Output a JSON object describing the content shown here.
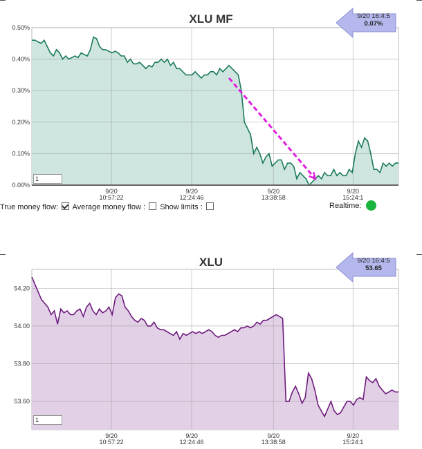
{
  "chart_data": [
    {
      "type": "area",
      "title": "XLU MF",
      "yticks": [
        "0.50%",
        "0.40%",
        "0.30%",
        "0.20%",
        "0.10%",
        "0.00%"
      ],
      "ylim": [
        0,
        0.5
      ],
      "xticks": [
        {
          "date": "9/20",
          "time": "10:57:22"
        },
        {
          "date": "9/20",
          "time": "12:24:46"
        },
        {
          "date": "9/20",
          "time": "13:38:58"
        },
        {
          "date": "9/20",
          "time": "15:24:1"
        }
      ],
      "series": [
        {
          "values": [
            0.46,
            0.46,
            0.455,
            0.45,
            0.46,
            0.44,
            0.42,
            0.41,
            0.43,
            0.42,
            0.4,
            0.41,
            0.4,
            0.405,
            0.41,
            0.405,
            0.42,
            0.415,
            0.41,
            0.43,
            0.47,
            0.465,
            0.44,
            0.43,
            0.43,
            0.425,
            0.42,
            0.425,
            0.42,
            0.41,
            0.41,
            0.39,
            0.4,
            0.385,
            0.385,
            0.39,
            0.38,
            0.37,
            0.38,
            0.375,
            0.39,
            0.39,
            0.4,
            0.39,
            0.4,
            0.38,
            0.39,
            0.37,
            0.37,
            0.36,
            0.35,
            0.35,
            0.35,
            0.36,
            0.35,
            0.34,
            0.35,
            0.35,
            0.36,
            0.36,
            0.35,
            0.37,
            0.36,
            0.37,
            0.38,
            0.37,
            0.36,
            0.35,
            0.3,
            0.2,
            0.18,
            0.16,
            0.1,
            0.12,
            0.1,
            0.07,
            0.09,
            0.1,
            0.06,
            0.07,
            0.08,
            0.08,
            0.05,
            0.07,
            0.07,
            0.06,
            0.02,
            0.04,
            0.03,
            0.02,
            0.0,
            0.01,
            0.02,
            0.03,
            0.02,
            0.04,
            0.03,
            0.03,
            0.05,
            0.03,
            0.04,
            0.03,
            0.03,
            0.05,
            0.04,
            0.1,
            0.14,
            0.12,
            0.15,
            0.14,
            0.1,
            0.05,
            0.05,
            0.04,
            0.07,
            0.06,
            0.07,
            0.06,
            0.07,
            0.07
          ]
        }
      ],
      "annotation": {
        "type": "trend-arrow",
        "color": "#e020e0"
      },
      "tooltip": {
        "time": "9/20 16:4:5",
        "value": "0.07%"
      },
      "input_value": "1",
      "controls": {
        "true_money_flow": "True money flow:",
        "average_money_flow": "Average money flow :",
        "show_limits": "Show limits :",
        "realtime": "Realtime:"
      },
      "colors": {
        "line": "#1a7a5a",
        "fill": "#cfe5df"
      }
    },
    {
      "type": "area",
      "title": "XLU",
      "yticks": [
        "54.20",
        "54.00",
        "53.80",
        "53.60"
      ],
      "ylim": [
        53.45,
        54.3
      ],
      "xticks": [
        {
          "date": "9/20",
          "time": "10:57:22"
        },
        {
          "date": "9/20",
          "time": "12:24:46"
        },
        {
          "date": "9/20",
          "time": "13:38:58"
        },
        {
          "date": "9/20",
          "time": "15:24:1"
        }
      ],
      "series": [
        {
          "values": [
            54.26,
            54.22,
            54.18,
            54.14,
            54.12,
            54.1,
            54.06,
            54.08,
            54.01,
            54.09,
            54.07,
            54.08,
            54.06,
            54.06,
            54.08,
            54.09,
            54.05,
            54.1,
            54.12,
            54.08,
            54.06,
            54.09,
            54.07,
            54.08,
            54.1,
            54.06,
            54.15,
            54.17,
            54.16,
            54.1,
            54.08,
            54.05,
            54.03,
            54.02,
            54.04,
            54.03,
            54.0,
            54.0,
            54.02,
            53.99,
            53.98,
            53.98,
            53.97,
            53.96,
            53.95,
            53.97,
            53.93,
            53.96,
            53.95,
            53.96,
            53.97,
            53.96,
            53.97,
            53.96,
            53.97,
            53.98,
            53.97,
            53.95,
            53.94,
            53.95,
            53.95,
            53.96,
            53.97,
            53.98,
            53.97,
            53.99,
            53.99,
            54.0,
            53.99,
            54.0,
            54.02,
            54.01,
            54.03,
            54.03,
            54.04,
            54.05,
            54.06,
            54.05,
            54.04,
            53.6,
            53.6,
            53.65,
            53.68,
            53.64,
            53.59,
            53.62,
            53.75,
            53.72,
            53.66,
            53.58,
            53.55,
            53.52,
            53.56,
            53.6,
            53.55,
            53.53,
            53.54,
            53.57,
            53.6,
            53.6,
            53.58,
            53.61,
            53.62,
            53.61,
            53.73,
            53.71,
            53.7,
            53.72,
            53.68,
            53.66,
            53.64,
            53.65,
            53.66,
            53.65,
            53.65
          ]
        }
      ],
      "tooltip": {
        "time": "9/20 16:4:5",
        "value": "53.65"
      },
      "input_value": "1",
      "colors": {
        "line": "#6e1a7e",
        "fill": "#e2d1e6"
      }
    }
  ]
}
